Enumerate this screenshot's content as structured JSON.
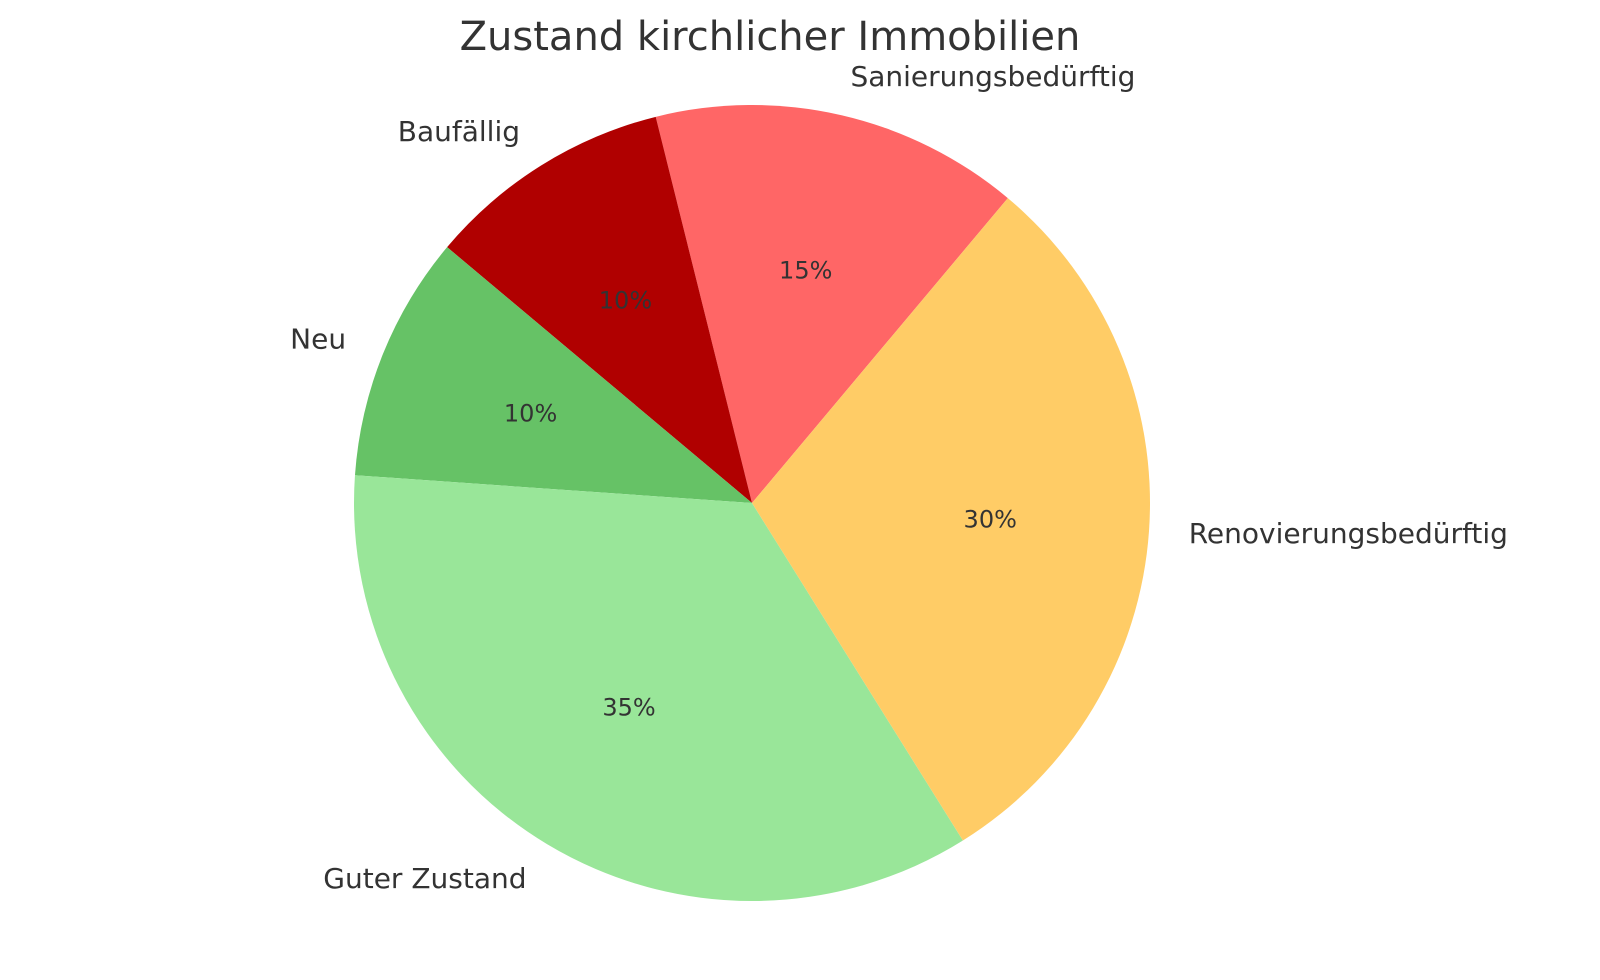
{
  "chart_data": {
    "type": "pie",
    "title": "Zustand kirchlicher Immobilien",
    "categories": [
      "Sanierungsbedürftig",
      "Baufällig",
      "Neu",
      "Guter Zustand",
      "Renovierungsbedürftig"
    ],
    "values": [
      15,
      10,
      10,
      35,
      30
    ],
    "value_labels": [
      "15%",
      "10%",
      "10%",
      "35%",
      "30%"
    ],
    "colors": [
      "#ff6666",
      "#b00000",
      "#66c266",
      "#99e699",
      "#ffcc66"
    ],
    "start_angle_deg": 50,
    "direction": "counterclockwise",
    "legend": "none"
  }
}
